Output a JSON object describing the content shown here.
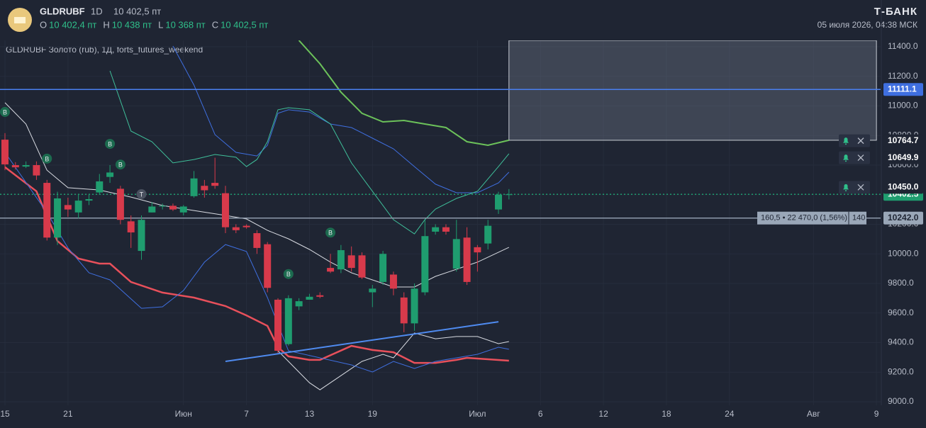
{
  "chart_data": {
    "type": "candlestick",
    "symbol": "GLDRUBF",
    "interval": "1D",
    "price": "10 402,5 пт",
    "ohlc_header": [
      [
        "O",
        "10 402,4 пт"
      ],
      [
        "H",
        "10 438 пт"
      ],
      [
        "L",
        "10 368 пт"
      ],
      [
        "C",
        "10 402,5 пт"
      ]
    ],
    "brand": "Т-БАНК",
    "datetime": "05 июля 2026, 04:38 МСК",
    "subtitle": "GLDRUBF Золото (rub), 1Д, forts_futures_weekend",
    "up_color": "#1f9d6f",
    "down_color": "#d83a4b",
    "x": [
      0,
      1,
      2,
      3,
      4,
      5,
      6,
      7,
      8,
      9,
      10,
      11,
      12,
      13,
      14,
      15,
      16,
      17,
      18,
      19,
      20,
      21,
      22,
      23,
      24,
      25,
      26,
      27,
      28,
      29,
      30,
      31,
      32,
      33,
      34,
      35,
      36,
      37,
      38,
      39,
      40,
      41,
      42,
      43,
      44,
      45,
      46,
      47,
      48
    ],
    "open": [
      10772,
      10600,
      10590,
      10600,
      10480,
      10110,
      10330,
      10280,
      10360,
      10415,
      10520,
      10440,
      10220,
      10020,
      10280,
      10320,
      10325,
      10280,
      10390,
      10460,
      10480,
      10410,
      10180,
      10190,
      10140,
      10065,
      9690,
      9390,
      9645,
      9690,
      9720,
      9905,
      9895,
      9990,
      9990,
      9740,
      9810,
      9860,
      9705,
      9530,
      9740,
      10150,
      10180,
      9900,
      10110,
      10045,
      10070,
      10300,
      10402.4
    ],
    "high": [
      10816,
      10620,
      10625,
      10625,
      10500,
      10420,
      10380,
      10400,
      10400,
      10540,
      10600,
      10460,
      10260,
      10260,
      10350,
      10340,
      10340,
      10330,
      10560,
      10500,
      10650,
      10460,
      10200,
      10200,
      10160,
      10080,
      9700,
      9720,
      9700,
      9730,
      9740,
      10000,
      10060,
      10050,
      10010,
      9790,
      10020,
      9880,
      9740,
      9800,
      10230,
      10200,
      10200,
      10230,
      10180,
      10060,
      10230,
      10420,
      10438
    ],
    "low": [
      10566,
      10570,
      10580,
      10500,
      10090,
      10060,
      10250,
      10240,
      10330,
      10400,
      10480,
      10200,
      10040,
      9960,
      10280,
      10300,
      10290,
      10260,
      10380,
      10380,
      10440,
      10140,
      10140,
      10170,
      10000,
      9740,
      9330,
      9380,
      9620,
      9690,
      9700,
      9870,
      9870,
      9880,
      9830,
      9640,
      9790,
      9720,
      9470,
      9480,
      9720,
      10130,
      10130,
      9880,
      9790,
      9880,
      10030,
      10270,
      10368
    ],
    "close": [
      10605,
      10585,
      10600,
      10530,
      10110,
      10375,
      10300,
      10360,
      10370,
      10490,
      10550,
      10230,
      10145,
      10230,
      10320,
      10325,
      10300,
      10320,
      10510,
      10430,
      10460,
      10180,
      10160,
      10180,
      10040,
      9770,
      9345,
      9700,
      9680,
      9710,
      9710,
      9880,
      10025,
      9905,
      9840,
      9765,
      10000,
      9765,
      9530,
      9765,
      10120,
      10180,
      10150,
      10100,
      9810,
      10010,
      10190,
      10400,
      10402.5
    ],
    "lines": [
      {
        "color": "#e8505b",
        "width": 2.5,
        "x": [
          0,
          3,
          5,
          7,
          9,
          10,
          12,
          15,
          18,
          21,
          23,
          25,
          26,
          27,
          29,
          30,
          33,
          35,
          37,
          39,
          41,
          43,
          44,
          48
        ],
        "values": [
          10586,
          10423,
          10087,
          9968,
          9934,
          9934,
          9810,
          9738,
          9704,
          9647,
          9584,
          9513,
          9369,
          9307,
          9283,
          9283,
          9378,
          9350,
          9335,
          9263,
          9263,
          9283,
          9297,
          9278
        ]
      },
      {
        "color": "#d8dbe2",
        "width": 1,
        "x": [
          0,
          2,
          4,
          6,
          9,
          12,
          15,
          18,
          21,
          23,
          25,
          27,
          29,
          31,
          33,
          35,
          37,
          39,
          41,
          43,
          45,
          48
        ],
        "values": [
          11022,
          10878,
          10566,
          10447,
          10432,
          10384,
          10327,
          10293,
          10260,
          10236,
          10159,
          10102,
          10030,
          9944,
          9872,
          9824,
          9776,
          9776,
          9848,
          9896,
          9944,
          10044
        ]
      },
      {
        "color": "#d8dbe2",
        "width": 1,
        "x": [
          26,
          27,
          29,
          30,
          32,
          34,
          36,
          37,
          39,
          41,
          43,
          45,
          47,
          48
        ],
        "values": [
          9345,
          9273,
          9129,
          9081,
          9177,
          9273,
          9321,
          9297,
          9465,
          9426,
          9441,
          9441,
          9393,
          9407
        ]
      },
      {
        "color": "#3f6fe0",
        "width": 1,
        "x": [
          0,
          4,
          6,
          8,
          10,
          13,
          15,
          17,
          19,
          21,
          23,
          25,
          27,
          30,
          33,
          35,
          37,
          39,
          41,
          43,
          45,
          47,
          48
        ],
        "values": [
          10686,
          10279,
          10040,
          9872,
          9824,
          9632,
          9642,
          9752,
          9944,
          10063,
          10016,
          9704,
          9345,
          9297,
          9249,
          9201,
          9273,
          9225,
          9273,
          9297,
          9321,
          9369,
          9355
        ]
      },
      {
        "color": "#3f6fe0",
        "width": 1,
        "x": [
          16,
          18,
          20,
          22,
          24,
          25,
          26,
          27,
          29,
          31,
          33,
          35,
          37,
          39,
          41,
          43,
          45,
          47,
          48
        ],
        "values": [
          11405,
          11141,
          10806,
          10686,
          10662,
          10734,
          10950,
          10974,
          10959,
          10878,
          10854,
          10782,
          10710,
          10590,
          10471,
          10413,
          10413,
          10480,
          10552
        ]
      },
      {
        "color": "#3fbf9a",
        "width": 1,
        "x": [
          10,
          12,
          14,
          16,
          18,
          20,
          22,
          23,
          24,
          25,
          26,
          27,
          29,
          31,
          33,
          35,
          37,
          39,
          40,
          41,
          43,
          45,
          47,
          48
        ],
        "values": [
          11237,
          10830,
          10758,
          10615,
          10638,
          10672,
          10653,
          10590,
          10638,
          10758,
          10974,
          10988,
          10974,
          10878,
          10615,
          10423,
          10231,
          10135,
          10231,
          10303,
          10375,
          10423,
          10590,
          10677
        ]
      },
      {
        "color": "#6cc25a",
        "width": 2,
        "x": [
          28,
          30,
          32,
          34,
          36,
          38,
          40,
          42,
          44,
          46,
          48
        ],
        "values": [
          11443,
          11285,
          11093,
          10950,
          10892,
          10902,
          10878,
          10854,
          10758,
          10734,
          10768
        ]
      },
      {
        "color": "#4f8bf0",
        "width": 2,
        "x": [
          21,
          47
        ],
        "values": [
          9273,
          9541
        ]
      }
    ],
    "markers": [
      {
        "x": 0,
        "label": "B"
      },
      {
        "x": 4,
        "label": "B"
      },
      {
        "x": 10,
        "label": "B"
      },
      {
        "x": 11,
        "label": "B"
      },
      {
        "x": 13,
        "label": "T"
      },
      {
        "x": 27,
        "label": "B"
      },
      {
        "x": 31,
        "label": "B"
      }
    ],
    "zone": {
      "x": [
        48,
        83
      ],
      "y": [
        10768,
        11443
      ]
    },
    "price_line": 11111.1,
    "last_price": 10402.5,
    "measure_line": {
      "value": 10242,
      "label": "10242.0"
    },
    "measure_text": "160,5 • 22 470,0 (1,56%)",
    "measure_bars": "140",
    "alerts": [
      10764.7,
      10649.9,
      {
        "value": 10450,
        "label": "10450.0"
      }
    ],
    "xlim": [
      0,
      83.6
    ],
    "ylim": [
      9000,
      11400
    ],
    "xticks": [
      {
        "value": 0,
        "label": "15"
      },
      {
        "value": 6,
        "label": "21"
      },
      {
        "value": 17,
        "label": "Июн"
      },
      {
        "value": 23,
        "label": "7"
      },
      {
        "value": 29,
        "label": "13"
      },
      {
        "value": 35,
        "label": "19"
      },
      {
        "value": 45,
        "label": "Июл"
      },
      {
        "value": 51,
        "label": "6"
      },
      {
        "value": 57,
        "label": "12"
      },
      {
        "value": 63,
        "label": "18"
      },
      {
        "value": 69,
        "label": "24"
      },
      {
        "value": 77,
        "label": "Авг"
      },
      {
        "value": 83,
        "label": "9"
      }
    ],
    "yticks": [
      {
        "value": 9000,
        "label": "9000.0"
      },
      {
        "value": 9200,
        "label": "9200.0"
      },
      {
        "value": 9400,
        "label": "9400.0"
      },
      {
        "value": 9600,
        "label": "9600.0"
      },
      {
        "value": 9800,
        "label": "9800.0"
      },
      {
        "value": 10000,
        "label": "10000.0"
      },
      {
        "value": 10200,
        "label": "10200.0"
      },
      {
        "value": 10400,
        "label": "10400.0"
      },
      {
        "value": 10600,
        "label": "10600.0"
      },
      {
        "value": 10800,
        "label": "10800.0"
      },
      {
        "value": 11000,
        "label": "11000.0"
      },
      {
        "value": 11200,
        "label": "11200.0"
      },
      {
        "value": 11400,
        "label": "11400.0"
      }
    ]
  }
}
